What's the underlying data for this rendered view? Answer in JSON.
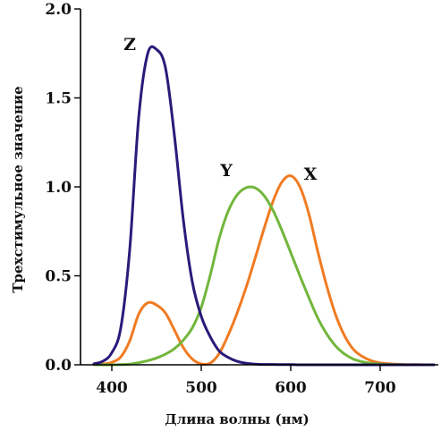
{
  "chart_data": {
    "type": "line",
    "title": "",
    "xlabel": "Длина волны (нм)",
    "ylabel": "Трехстимульное значение",
    "xlim": [
      365,
      765
    ],
    "ylim": [
      0,
      2.0
    ],
    "x_ticks": [
      {
        "value": 400,
        "label": "400"
      },
      {
        "value": 500,
        "label": "500"
      },
      {
        "value": 600,
        "label": "600"
      },
      {
        "value": 700,
        "label": "700"
      }
    ],
    "y_ticks": [
      {
        "value": 0.0,
        "label": "0.0"
      },
      {
        "value": 0.5,
        "label": "0.5"
      },
      {
        "value": 1.0,
        "label": "1.0"
      },
      {
        "value": 1.5,
        "label": "1.5"
      },
      {
        "value": 2.0,
        "label": "2.0"
      }
    ],
    "grid": false,
    "series": [
      {
        "name": "X",
        "color": "#f07b22",
        "label_at": [
          622,
          1.04
        ],
        "x": [
          380,
          390,
          400,
          410,
          420,
          430,
          440,
          450,
          460,
          470,
          480,
          490,
          500,
          510,
          520,
          530,
          540,
          550,
          560,
          570,
          580,
          590,
          600,
          610,
          620,
          630,
          640,
          650,
          660,
          670,
          680,
          690,
          700,
          710,
          720,
          730,
          740,
          750,
          760
        ],
        "y": [
          0.001,
          0.004,
          0.014,
          0.044,
          0.134,
          0.284,
          0.348,
          0.336,
          0.291,
          0.195,
          0.096,
          0.032,
          0.005,
          0.009,
          0.063,
          0.166,
          0.29,
          0.433,
          0.595,
          0.762,
          0.916,
          1.026,
          1.062,
          1.003,
          0.854,
          0.642,
          0.448,
          0.284,
          0.165,
          0.087,
          0.047,
          0.023,
          0.011,
          0.006,
          0.003,
          0.001,
          0.001,
          0.0,
          0.0
        ]
      },
      {
        "name": "Y",
        "color": "#72b63c",
        "label_at": [
          528,
          1.06
        ],
        "x": [
          380,
          390,
          400,
          410,
          420,
          430,
          440,
          450,
          460,
          470,
          480,
          490,
          500,
          510,
          520,
          530,
          540,
          550,
          560,
          570,
          580,
          590,
          600,
          610,
          620,
          630,
          640,
          650,
          660,
          670,
          680,
          690,
          700,
          710,
          720,
          730,
          740,
          750,
          760
        ],
        "y": [
          0.0,
          0.0,
          0.0,
          0.001,
          0.004,
          0.012,
          0.023,
          0.038,
          0.06,
          0.091,
          0.139,
          0.208,
          0.323,
          0.503,
          0.71,
          0.862,
          0.954,
          0.995,
          0.995,
          0.952,
          0.87,
          0.757,
          0.631,
          0.503,
          0.381,
          0.265,
          0.175,
          0.107,
          0.061,
          0.032,
          0.017,
          0.008,
          0.004,
          0.002,
          0.001,
          0.0,
          0.0,
          0.0,
          0.0
        ]
      },
      {
        "name": "Z",
        "color": "#2b1a7a",
        "label_at": [
          420,
          1.77
        ],
        "x": [
          380,
          390,
          400,
          410,
          420,
          430,
          440,
          450,
          460,
          470,
          480,
          490,
          500,
          510,
          520,
          530,
          540,
          550,
          560,
          570,
          580,
          590,
          600,
          610,
          620,
          630,
          640,
          650,
          660,
          670,
          680,
          690,
          700,
          710,
          720,
          730,
          740,
          750,
          760
        ],
        "y": [
          0.006,
          0.02,
          0.068,
          0.207,
          0.646,
          1.386,
          1.747,
          1.772,
          1.669,
          1.288,
          0.813,
          0.465,
          0.272,
          0.158,
          0.078,
          0.042,
          0.02,
          0.009,
          0.004,
          0.002,
          0.002,
          0.001,
          0.001,
          0.0,
          0.0,
          0.0,
          0.0,
          0.0,
          0.0,
          0.0,
          0.0,
          0.0,
          0.0,
          0.0,
          0.0,
          0.0,
          0.0,
          0.0,
          0.0
        ]
      }
    ]
  }
}
